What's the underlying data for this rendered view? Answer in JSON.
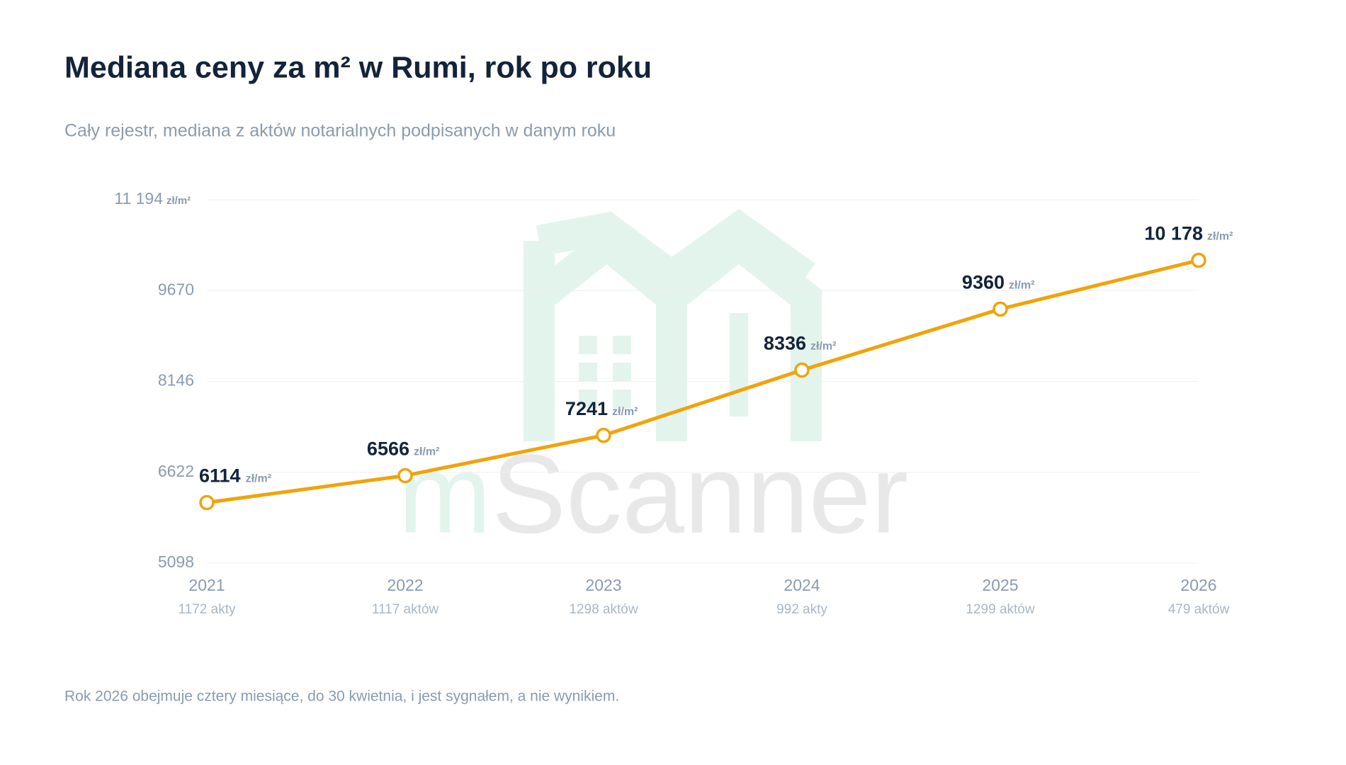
{
  "chart_data": {
    "type": "line",
    "title": "Mediana ceny za m² w Rumi, rok po roku",
    "subtitle": "Cały rejestr, mediana z aktów notarialnych podpisanych w danym roku",
    "unit": "zł/m²",
    "categories": [
      "2021",
      "2022",
      "2023",
      "2024",
      "2025",
      "2026"
    ],
    "deal_counts": [
      "1172 akty",
      "1117 aktów",
      "1298 aktów",
      "992 akty",
      "1299 aktów",
      "479 aktów"
    ],
    "values": [
      6114,
      6566,
      7241,
      8336,
      9360,
      10178
    ],
    "value_labels": [
      "6114",
      "6566",
      "7241",
      "8336",
      "9360",
      "10 178"
    ],
    "color": "#f0a30a",
    "ylim": [
      5098,
      11194
    ],
    "yticks": [
      5098,
      6622,
      8146,
      9670,
      {
        "value": 11194,
        "label": "11 194"
      }
    ],
    "grid": true,
    "note": "Rok 2026 obejmuje cztery miesiące, do 30 kwietnia, i jest sygnałem, a nie wynikiem.",
    "watermark": "mScanner"
  }
}
